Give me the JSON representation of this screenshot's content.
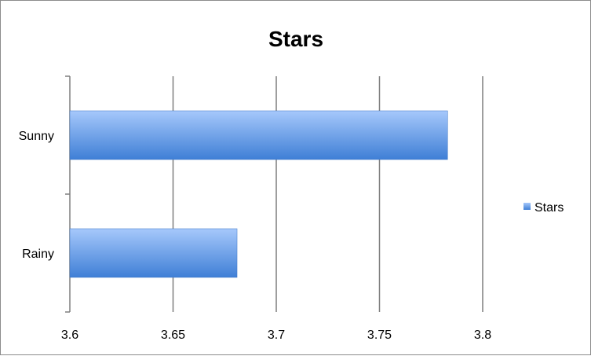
{
  "chart_data": {
    "type": "bar",
    "orientation": "horizontal",
    "title": "Stars",
    "categories": [
      "Sunny",
      "Rainy"
    ],
    "series": [
      {
        "name": "Stars",
        "values": [
          3.783,
          3.681
        ]
      }
    ],
    "xlim": [
      3.6,
      3.8
    ],
    "xticks": [
      "3.6",
      "3.65",
      "3.7",
      "3.75",
      "3.8"
    ],
    "xtick_values": [
      3.6,
      3.65,
      3.7,
      3.75,
      3.8
    ],
    "xlabel": "",
    "ylabel": "",
    "grid": "vertical",
    "legend": "right",
    "colors": {
      "bar_light": "#a6c8fb",
      "bar_dark": "#3f7fd6",
      "bar_edge": "#3a74c4",
      "gridline": "#7f7f7f",
      "axis": "#7f7f7f"
    }
  }
}
